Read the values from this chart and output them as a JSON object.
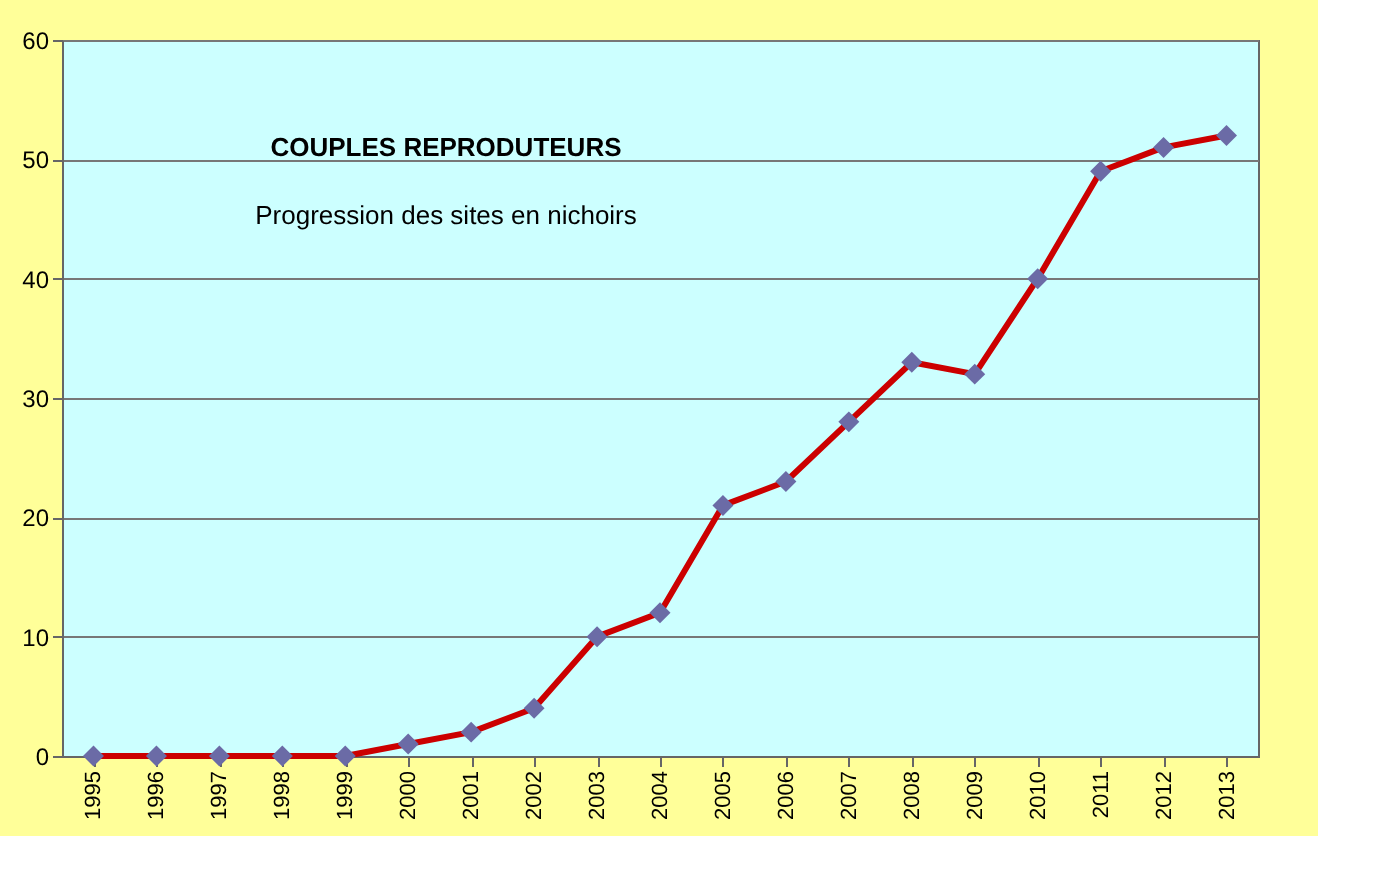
{
  "chart_data": {
    "type": "line",
    "title": "COUPLES REPRODUTEURS",
    "subtitle": "Progression des sites en nichoirs",
    "categories": [
      "1995",
      "1996",
      "1997",
      "1998",
      "1999",
      "2000",
      "2001",
      "2002",
      "2003",
      "2004",
      "2005",
      "2006",
      "2007",
      "2008",
      "2009",
      "2010",
      "2011",
      "2012",
      "2013"
    ],
    "series": [
      {
        "color": "#cc0000",
        "values": [
          0,
          0,
          0,
          0,
          0,
          1,
          2,
          4,
          10,
          12,
          21,
          23,
          28,
          33,
          32,
          40,
          49,
          51,
          52
        ]
      }
    ],
    "ylim": [
      0,
      60
    ],
    "yticks": [
      0,
      10,
      20,
      30,
      40,
      50,
      60
    ],
    "grid": "y",
    "marker": "diamond",
    "line_style": "solid",
    "legend": false
  }
}
